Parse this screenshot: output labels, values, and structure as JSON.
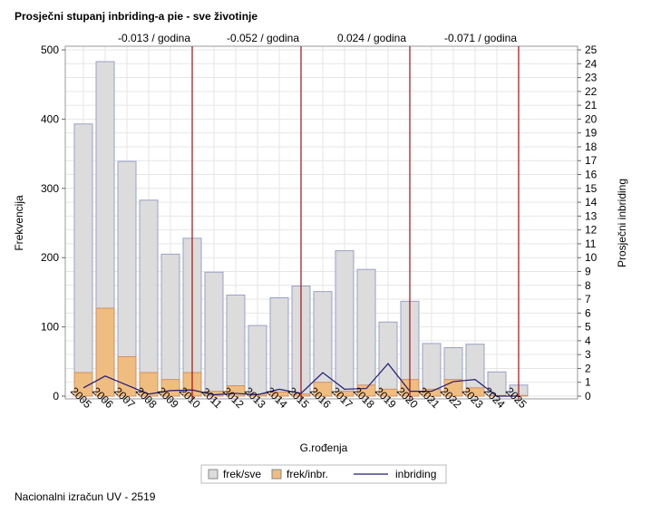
{
  "title": "Prosječni stupanj inbriding-a pie - sve životinje",
  "footer": "Nacionalni izračun UV - 2519",
  "chart_data": {
    "type": "bar",
    "xlabel": "G.rođenja",
    "ylabel": "Frekvencija",
    "y2label": "Prosječni inbriding",
    "ylim": [
      0,
      500
    ],
    "y2lim": [
      0,
      25
    ],
    "yticks": [
      0,
      100,
      200,
      300,
      400,
      500
    ],
    "grid": true,
    "legend_placement": "bottom",
    "categories": [
      "2005",
      "2006",
      "2007",
      "2008",
      "2009",
      "2010",
      "2011",
      "2012",
      "2013",
      "2014",
      "2015",
      "2016",
      "2017",
      "2018",
      "2019",
      "2020",
      "2021",
      "2022",
      "2023",
      "2024",
      "2025"
    ],
    "series": [
      {
        "name": "frek/sve",
        "type": "bar",
        "color": "#dcdcdc",
        "values": [
          393,
          483,
          339,
          283,
          205,
          228,
          179,
          146,
          102,
          142,
          159,
          151,
          210,
          183,
          107,
          137,
          76,
          70,
          75,
          35,
          16
        ]
      },
      {
        "name": "frek/inbr.",
        "type": "bar",
        "color": "#f0bd80",
        "values": [
          34,
          127,
          57,
          34,
          24,
          34,
          7,
          15,
          3,
          6,
          3,
          20,
          7,
          16,
          10,
          24,
          10,
          24,
          12,
          1,
          1
        ]
      },
      {
        "name": "inbriding",
        "type": "line",
        "axis": "right",
        "color": "#1c1c78",
        "values": [
          0.6,
          1.45,
          0.8,
          0.15,
          0.4,
          0.45,
          0.1,
          0.2,
          0.1,
          0.5,
          0.2,
          1.7,
          0.5,
          0.55,
          2.35,
          0.35,
          0.35,
          1.05,
          1.2,
          0,
          0
        ]
      }
    ],
    "reference_lines": [
      {
        "at": "2010",
        "label": "-0.013 / godina"
      },
      {
        "at": "2015",
        "label": "-0.052 / godina"
      },
      {
        "at": "2020",
        "label": "0.024 / godina"
      },
      {
        "at": "2025",
        "label": "-0.071 / godina"
      }
    ],
    "reference_color": "#a01010"
  }
}
